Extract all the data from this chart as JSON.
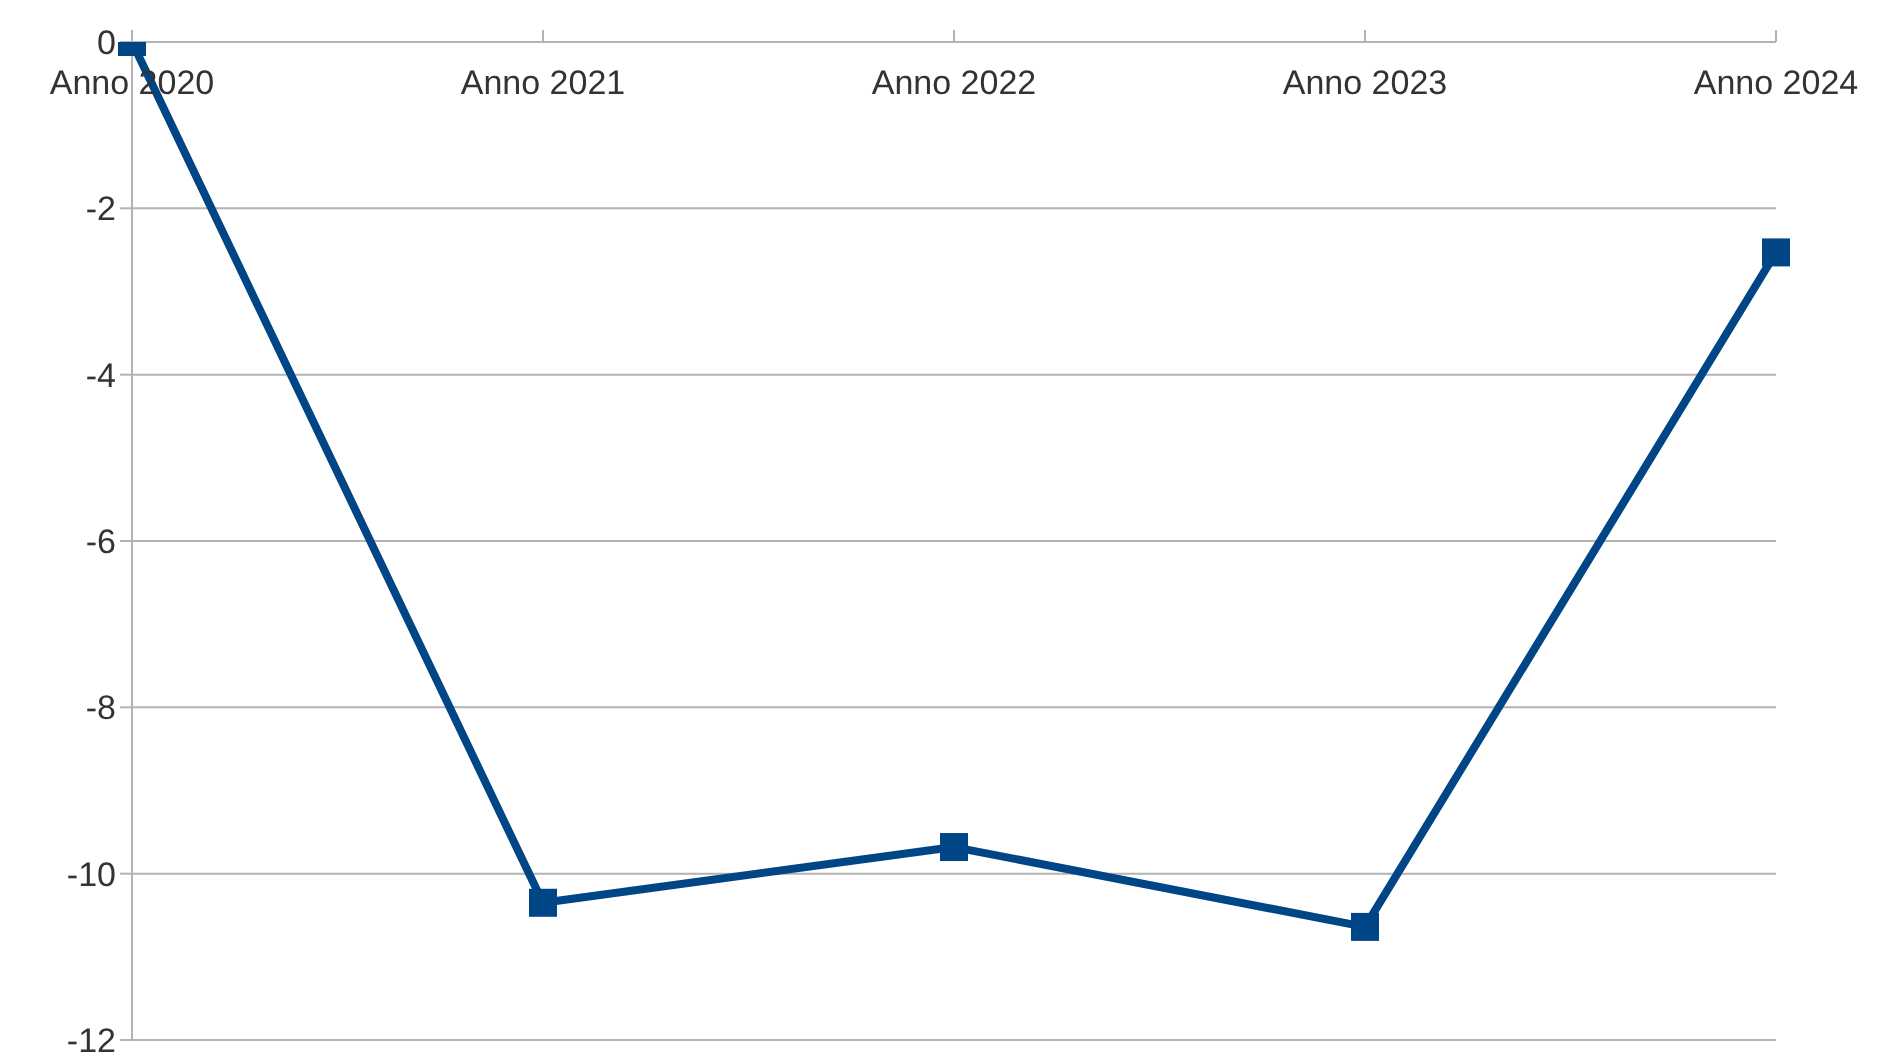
{
  "chart_data": {
    "type": "line",
    "categories": [
      "Anno 2020",
      "Anno 2021",
      "Anno 2022",
      "Anno 2023",
      "Anno 2024"
    ],
    "series": [
      {
        "color": "#004586",
        "values": [
          0,
          -10.35,
          -9.68,
          -10.64,
          -2.53
        ]
      }
    ],
    "ylim": [
      -12,
      0
    ],
    "yticks": [
      -12,
      -10,
      -8,
      -6,
      -4,
      -2,
      0
    ],
    "grid": "y",
    "marker": "square",
    "line_style": "solid"
  }
}
